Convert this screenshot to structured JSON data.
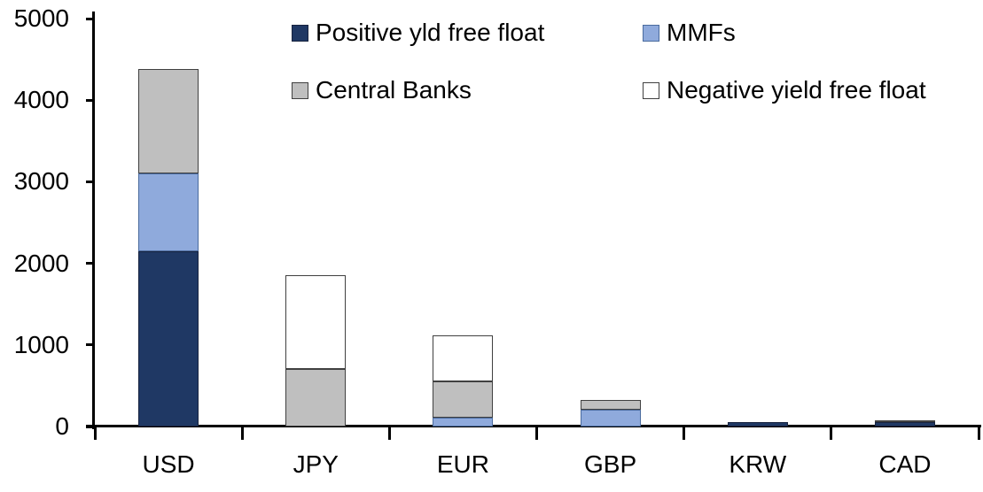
{
  "chart_data": {
    "type": "bar",
    "stacked": true,
    "title": "",
    "xlabel": "",
    "ylabel": "",
    "categories": [
      "USD",
      "JPY",
      "EUR",
      "GBP",
      "KRW",
      "CAD"
    ],
    "series": [
      {
        "name": "Positive yld free float",
        "color": "#1F3864",
        "border": "#17233F",
        "values": [
          2150,
          0,
          0,
          0,
          50,
          50
        ]
      },
      {
        "name": "MMFs",
        "color": "#8FAADC",
        "border": "#4A6B9E",
        "values": [
          950,
          0,
          110,
          210,
          0,
          0
        ]
      },
      {
        "name": "Central Banks",
        "color": "#BFBFBF",
        "border": "#404040",
        "values": [
          1280,
          700,
          440,
          120,
          0,
          30
        ]
      },
      {
        "name": "Negative yield free float",
        "color": "#FFFFFF",
        "border": "#404040",
        "values": [
          0,
          1150,
          570,
          0,
          0,
          0
        ]
      }
    ],
    "totals": [
      4380,
      1850,
      1120,
      330,
      50,
      80
    ],
    "ylim": [
      0,
      5000
    ],
    "yticks": [
      0,
      1000,
      2000,
      3000,
      4000,
      5000
    ],
    "ytick_labels": [
      "0",
      "1000",
      "2000",
      "3000",
      "4000",
      "5000"
    ],
    "grid": false,
    "legend_position": "top-center-two-rows",
    "axis_color": "#000000"
  }
}
